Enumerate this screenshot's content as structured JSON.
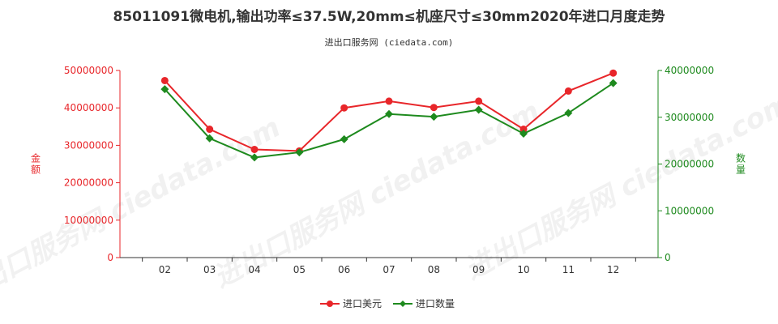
{
  "chart_data": {
    "type": "line",
    "title": "85011091微电机,输出功率≤37.5W,20mm≤机座尺寸≤30mm2020年进口月度走势",
    "subtitle": "进出口服务网 (ciedata.com)",
    "watermark": "进出口服务网 ciedata.com",
    "categories": [
      "02",
      "03",
      "04",
      "05",
      "06",
      "07",
      "08",
      "09",
      "10",
      "11",
      "12"
    ],
    "y_left": {
      "label": "金额",
      "ylim": [
        0,
        50000000
      ],
      "ticks": [
        "0",
        "10000000",
        "20000000",
        "30000000",
        "40000000",
        "50000000"
      ],
      "color": "#e8262a"
    },
    "y_right": {
      "label": "数量",
      "ylim": [
        0,
        40000000
      ],
      "ticks": [
        "0",
        "10000000",
        "20000000",
        "30000000",
        "40000000"
      ],
      "color": "#1e8a1e"
    },
    "series": [
      {
        "name": "进口美元",
        "axis": "left",
        "color": "#e8262a",
        "marker": "circle",
        "values": [
          47300000,
          34300000,
          28900000,
          28500000,
          40000000,
          41800000,
          40100000,
          41800000,
          34300000,
          44500000,
          49300000
        ]
      },
      {
        "name": "进口数量",
        "axis": "right",
        "color": "#1e8a1e",
        "marker": "diamond",
        "values": [
          36000000,
          25500000,
          21400000,
          22500000,
          25300000,
          30700000,
          30100000,
          31600000,
          26500000,
          30900000,
          37300000
        ]
      }
    ],
    "grid": false,
    "legend_position": "bottom-center"
  }
}
